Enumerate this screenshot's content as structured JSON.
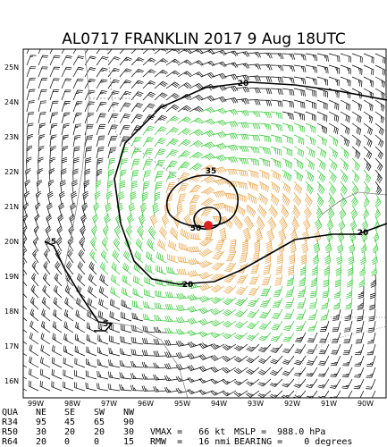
{
  "header": {
    "title": "AL0717    FRANKLIN 2017   9 Aug 18UTC"
  },
  "lat_labels": [
    "25N",
    "24N",
    "23N",
    "22N",
    "21N",
    "20N",
    "19N",
    "18N",
    "17N",
    "16N"
  ],
  "lon_labels": [
    "99W",
    "98W",
    "97W",
    "96W",
    "95W",
    "94W",
    "93W",
    "92W",
    "91W",
    "90W"
  ],
  "contour_labels": [
    "20",
    "35",
    "50",
    "5",
    "20",
    "20",
    "5"
  ],
  "table": {
    "header": [
      "QUA",
      "NE",
      "SE",
      "SW",
      "NW"
    ],
    "rows": [
      [
        "R34",
        "95",
        "45",
        "65",
        "90"
      ],
      [
        "R50",
        "30",
        "20",
        "20",
        "30"
      ],
      [
        "R64",
        "20",
        "0",
        "0",
        "15"
      ]
    ]
  },
  "stats": [
    "VMAX =   66 kt",
    "MSLP =  988.0 hPa",
    "RMW  =   16 nmi",
    "BEARING =    0 degrees"
  ]
}
